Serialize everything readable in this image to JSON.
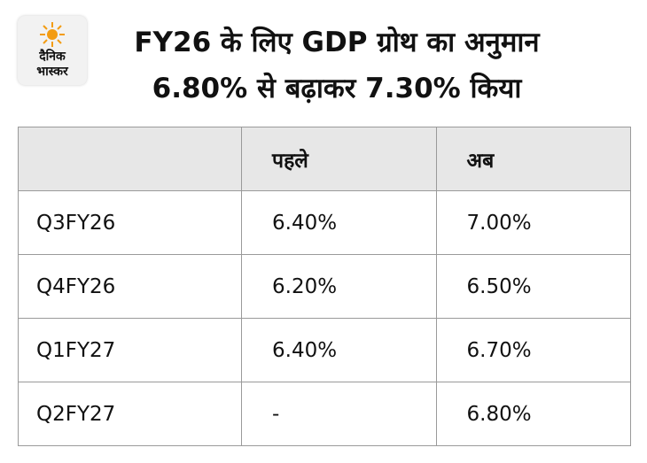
{
  "logo": {
    "lines": [
      "दैनिक",
      "भास्कर"
    ]
  },
  "header": {
    "title": [
      "FY26 के लिए GDP ग्रोथ का अनुमान",
      "6.80% से बढ़ाकर 7.30% किया"
    ]
  },
  "table": {
    "columns": [
      "पहले",
      "अब"
    ],
    "rows": [
      [
        "Q3FY26",
        "6.40%",
        "7.00%"
      ],
      [
        "Q4FY26",
        "6.20%",
        "6.50%"
      ],
      [
        "Q1FY27",
        "6.40%",
        "6.70%"
      ],
      [
        "Q2FY27",
        "-",
        "6.80%"
      ]
    ]
  }
}
